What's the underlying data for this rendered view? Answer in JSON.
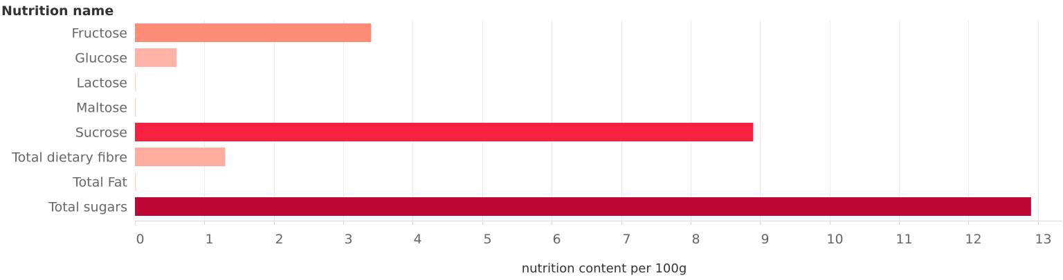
{
  "chart_data": {
    "type": "bar",
    "orientation": "horizontal",
    "row_header": "Nutrition name",
    "xlabel": "nutrition content per 100g",
    "xlim": [
      0,
      13.35
    ],
    "xticks": [
      0,
      1,
      2,
      3,
      4,
      5,
      6,
      7,
      8,
      9,
      10,
      11,
      12,
      13
    ],
    "grid": true,
    "categories": [
      "Fructose",
      "Glucose",
      "Lactose",
      "Maltose",
      "Sucrose",
      "Total dietary fibre",
      "Total Fat",
      "Total sugars"
    ],
    "values": [
      3.4,
      0.6,
      0.01,
      0.01,
      8.9,
      1.3,
      0.01,
      12.9
    ],
    "colors": [
      "#fe8b76",
      "#ffb3a6",
      "#ffd6cf",
      "#ffd6cf",
      "#f72040",
      "#ffad9f",
      "#ffd6cf",
      "#be0735"
    ]
  }
}
